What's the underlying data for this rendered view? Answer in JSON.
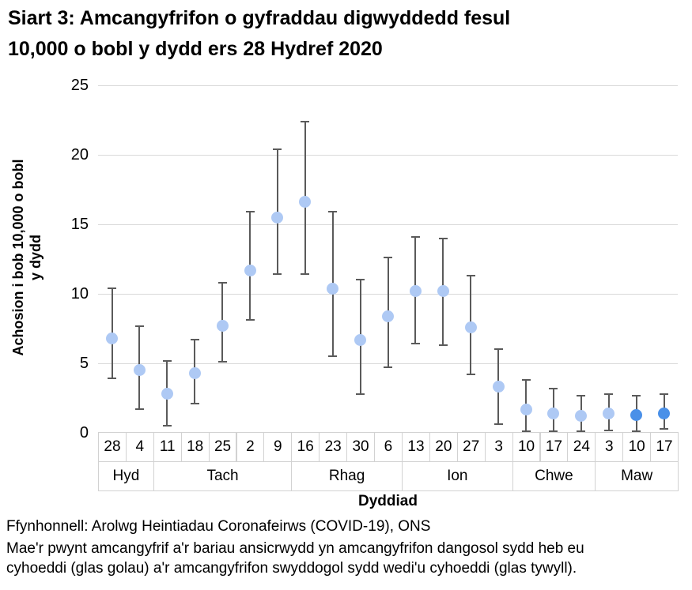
{
  "title": "Siart 3: Amcangyfrifon o gyfraddau digwyddedd fesul\n10,000 o bobl y dydd ers 28 Hydref 2020",
  "chart_data": {
    "type": "scatter",
    "title": "Siart 3: Amcangyfrifon o gyfraddau digwyddedd fesul 10,000 o bobl y dydd ers 28 Hydref 2020",
    "xlabel": "Dyddiad",
    "ylabel": "Achosion i bob 10,000 o bobl\ny dydd",
    "ylim": [
      0,
      25
    ],
    "yticks": [
      0,
      5,
      10,
      15,
      20,
      25
    ],
    "grid": true,
    "legend_note": "glas golau = heb eu cyhoeddi (dangosol), glas tywyll = wedi'u cyhoeddi (swyddogol)",
    "categories": [
      "28",
      "4",
      "11",
      "18",
      "25",
      "2",
      "9",
      "16",
      "23",
      "30",
      "6",
      "13",
      "20",
      "27",
      "3",
      "10",
      "17",
      "24",
      "3",
      "10",
      "17"
    ],
    "month_groups": [
      {
        "label": "Hyd",
        "span": 2
      },
      {
        "label": "Tach",
        "span": 5
      },
      {
        "label": "Rhag",
        "span": 4
      },
      {
        "label": "Ion",
        "span": 4
      },
      {
        "label": "Chwe",
        "span": 3
      },
      {
        "label": "Maw",
        "span": 3
      }
    ],
    "points": [
      {
        "date": "28",
        "month": "Hyd",
        "value": 6.8,
        "ci_low": 3.9,
        "ci_high": 10.4,
        "published": false
      },
      {
        "date": "4",
        "month": "Hyd",
        "value": 4.5,
        "ci_low": 1.7,
        "ci_high": 7.7,
        "published": false
      },
      {
        "date": "11",
        "month": "Tach",
        "value": 2.8,
        "ci_low": 0.5,
        "ci_high": 5.2,
        "published": false
      },
      {
        "date": "18",
        "month": "Tach",
        "value": 4.3,
        "ci_low": 2.1,
        "ci_high": 6.7,
        "published": false
      },
      {
        "date": "25",
        "month": "Tach",
        "value": 7.7,
        "ci_low": 5.1,
        "ci_high": 10.8,
        "published": false
      },
      {
        "date": "2",
        "month": "Tach",
        "value": 11.7,
        "ci_low": 8.1,
        "ci_high": 15.9,
        "published": false
      },
      {
        "date": "9",
        "month": "Tach",
        "value": 15.5,
        "ci_low": 11.4,
        "ci_high": 20.4,
        "published": false
      },
      {
        "date": "16",
        "month": "Rhag",
        "value": 16.6,
        "ci_low": 11.4,
        "ci_high": 22.4,
        "published": false
      },
      {
        "date": "23",
        "month": "Rhag",
        "value": 10.4,
        "ci_low": 5.5,
        "ci_high": 15.9,
        "published": false
      },
      {
        "date": "30",
        "month": "Rhag",
        "value": 6.7,
        "ci_low": 2.8,
        "ci_high": 11.0,
        "published": false
      },
      {
        "date": "6",
        "month": "Rhag",
        "value": 8.4,
        "ci_low": 4.7,
        "ci_high": 12.6,
        "published": false
      },
      {
        "date": "13",
        "month": "Ion",
        "value": 10.2,
        "ci_low": 6.4,
        "ci_high": 14.1,
        "published": false
      },
      {
        "date": "20",
        "month": "Ion",
        "value": 10.2,
        "ci_low": 6.3,
        "ci_high": 14.0,
        "published": false
      },
      {
        "date": "27",
        "month": "Ion",
        "value": 7.6,
        "ci_low": 4.2,
        "ci_high": 11.3,
        "published": false
      },
      {
        "date": "3",
        "month": "Ion",
        "value": 3.3,
        "ci_low": 0.6,
        "ci_high": 6.0,
        "published": false
      },
      {
        "date": "10",
        "month": "Chwe",
        "value": 1.7,
        "ci_low": 0.1,
        "ci_high": 3.8,
        "published": false
      },
      {
        "date": "17",
        "month": "Chwe",
        "value": 1.4,
        "ci_low": 0.1,
        "ci_high": 3.2,
        "published": false
      },
      {
        "date": "24",
        "month": "Chwe",
        "value": 1.2,
        "ci_low": 0.1,
        "ci_high": 2.7,
        "published": false
      },
      {
        "date": "3",
        "month": "Maw",
        "value": 1.4,
        "ci_low": 0.2,
        "ci_high": 2.8,
        "published": false
      },
      {
        "date": "10",
        "month": "Maw",
        "value": 1.3,
        "ci_low": 0.1,
        "ci_high": 2.7,
        "published": true
      },
      {
        "date": "17",
        "month": "Maw",
        "value": 1.4,
        "ci_low": 0.3,
        "ci_high": 2.8,
        "published": true
      }
    ],
    "colors": {
      "unpublished": "#aec9f4",
      "published": "#4a90e8",
      "error_bar": "#5a5a5a",
      "gridline": "#d9d9d9",
      "cell_border": "#d2d2d2"
    }
  },
  "footer": {
    "source": "Ffynhonnell: Arolwg Heintiadau Coronafeirws (COVID-19), ONS",
    "note": "Mae'r pwynt amcangyfrif a'r bariau ansicrwydd yn amcangyfrifon dangosol sydd heb eu\ncyhoeddi (glas golau) a'r amcangyfrifon swyddogol sydd wedi'u cyhoeddi (glas tywyll)."
  }
}
